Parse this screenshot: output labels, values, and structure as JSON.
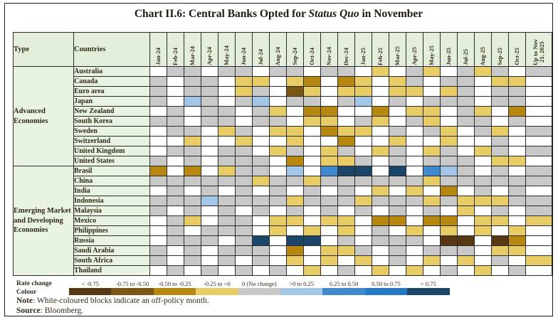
{
  "title": {
    "prefix": "Chart II.6: Central Banks Opted for ",
    "italic": "Status Quo",
    "suffix": " in November"
  },
  "header": {
    "type": "Type",
    "countries": "Countries"
  },
  "legend": {
    "title_line1": "Rate change",
    "title_line2": "Colour"
  },
  "note": {
    "label": "Note",
    "text": ": White-coloured blocks indicate an off-policy month."
  },
  "source": {
    "label": "Source",
    "text": ": Bloomberg."
  },
  "chart_data": {
    "type": "heatmap",
    "columns": [
      "Jan-24",
      "Feb-24",
      "Mar-24",
      "Apr-24",
      "May-24",
      "Jun-24",
      "Jul-24",
      "Aug-24",
      "Sep-24",
      "Oct-24",
      "Nov-24",
      "Dec-24",
      "Jan-25",
      "Feb-25",
      "Mar-25",
      "Apr-25",
      "May-25",
      "Jun-25",
      "Jul-25",
      "Aug-25",
      "Sep-25",
      "Oct-25",
      "Up to Nov\n21, 2025"
    ],
    "cell_codes": {
      "W": {
        "meaning": "off-policy month",
        "color": "#ffffff"
      },
      "G": {
        "meaning": "0 (No change)",
        "color": "#c9c9c9"
      },
      "Y": {
        "meaning": "-0.25 to <0",
        "color": "#e8cc66"
      },
      "DG": {
        "meaning": "-0.50 to -0.25",
        "color": "#b8870f"
      },
      "BR": {
        "meaning": "-0.75 to -0.50",
        "color": "#7a5714"
      },
      "DBR": {
        "meaning": "< -0.75",
        "color": "#573812"
      },
      "LB": {
        "meaning": ">0 to 0.25",
        "color": "#a3c7e8"
      },
      "MB": {
        "meaning": "0.25 to 0.50",
        "color": "#4189ce"
      },
      "DB8": {
        "meaning": "0.50 to 0.75",
        "color": "#2878c8"
      },
      "NV": {
        "meaning": "> 0.75",
        "color": "#1b4669"
      }
    },
    "legend_bins": [
      {
        "label": "< -0.75",
        "color": "#573812"
      },
      {
        "label": "-0.75 to -0.50",
        "color": "#7a5714"
      },
      {
        "label": "-0.50 to -0.25",
        "color": "#b8870f"
      },
      {
        "label": "-0.25 to <0",
        "color": "#e8cc66"
      },
      {
        "label": "0 (No change)",
        "color": "#c9c9c9"
      },
      {
        "label": ">0 to 0.25",
        "color": "#a3c7e8"
      },
      {
        "label": "0.25 to 0.50",
        "color": "#4189ce"
      },
      {
        "label": "0.50 to 0.75",
        "color": "#2878c8"
      },
      {
        "label": "> 0.75",
        "color": "#1b4669"
      }
    ],
    "groups": [
      {
        "label": "Advanced Economies",
        "rows": [
          {
            "country": "Australia",
            "cells": [
              "W",
              "G",
              "G",
              "W",
              "G",
              "G",
              "W",
              "G",
              "G",
              "W",
              "G",
              "G",
              "W",
              "Y",
              "W",
              "G",
              "Y",
              "W",
              "G",
              "Y",
              "G",
              "W",
              "G"
            ]
          },
          {
            "country": "Canada",
            "cells": [
              "G",
              "W",
              "G",
              "G",
              "W",
              "Y",
              "Y",
              "W",
              "Y",
              "DG",
              "W",
              "DG",
              "Y",
              "W",
              "Y",
              "G",
              "W",
              "G",
              "G",
              "W",
              "Y",
              "Y",
              "W"
            ]
          },
          {
            "country": "Euro area",
            "cells": [
              "G",
              "W",
              "G",
              "G",
              "W",
              "Y",
              "G",
              "W",
              "BR",
              "Y",
              "W",
              "Y",
              "Y",
              "W",
              "Y",
              "Y",
              "W",
              "Y",
              "G",
              "W",
              "G",
              "G",
              "W"
            ]
          },
          {
            "country": "Japan",
            "cells": [
              "G",
              "W",
              "LB",
              "G",
              "W",
              "G",
              "LB",
              "W",
              "G",
              "G",
              "W",
              "G",
              "LB",
              "W",
              "G",
              "W",
              "G",
              "G",
              "G",
              "W",
              "G",
              "G",
              "W"
            ]
          },
          {
            "country": "New Zealand",
            "cells": [
              "W",
              "G",
              "W",
              "G",
              "G",
              "W",
              "G",
              "Y",
              "W",
              "DG",
              "DG",
              "W",
              "W",
              "DG",
              "W",
              "Y",
              "Y",
              "W",
              "G",
              "Y",
              "W",
              "DG",
              "W"
            ]
          },
          {
            "country": "South Korea",
            "cells": [
              "G",
              "G",
              "W",
              "G",
              "G",
              "W",
              "G",
              "G",
              "W",
              "Y",
              "Y",
              "W",
              "G",
              "Y",
              "W",
              "G",
              "Y",
              "W",
              "G",
              "G",
              "W",
              "G",
              "W"
            ]
          },
          {
            "country": "Sweden",
            "cells": [
              "W",
              "G",
              "G",
              "W",
              "Y",
              "G",
              "W",
              "Y",
              "Y",
              "W",
              "DG",
              "Y",
              "Y",
              "W",
              "G",
              "W",
              "G",
              "Y",
              "W",
              "G",
              "Y",
              "W",
              "G"
            ]
          },
          {
            "country": "Switzerland",
            "cells": [
              "W",
              "W",
              "Y",
              "W",
              "W",
              "Y",
              "W",
              "W",
              "Y",
              "W",
              "W",
              "DG",
              "W",
              "W",
              "Y",
              "W",
              "W",
              "Y",
              "W",
              "W",
              "G",
              "W",
              "W"
            ]
          },
          {
            "country": "United Kingdom",
            "cells": [
              "W",
              "G",
              "G",
              "W",
              "G",
              "G",
              "W",
              "Y",
              "G",
              "W",
              "Y",
              "G",
              "W",
              "Y",
              "G",
              "W",
              "Y",
              "G",
              "W",
              "Y",
              "G",
              "W",
              "G"
            ]
          },
          {
            "country": "United States",
            "cells": [
              "G",
              "W",
              "G",
              "W",
              "G",
              "G",
              "G",
              "W",
              "DG",
              "W",
              "Y",
              "Y",
              "G",
              "W",
              "G",
              "W",
              "G",
              "G",
              "G",
              "W",
              "Y",
              "Y",
              "W"
            ]
          }
        ]
      },
      {
        "label": "Emerging Market and Developing Economies",
        "rows": [
          {
            "country": "Brasil",
            "cells": [
              "DG",
              "W",
              "DG",
              "W",
              "Y",
              "G",
              "G",
              "W",
              "LB",
              "W",
              "MB",
              "NV",
              "NV",
              "W",
              "NV",
              "W",
              "MB",
              "LB",
              "G",
              "W",
              "G",
              "W",
              "G"
            ]
          },
          {
            "country": "China",
            "cells": [
              "G",
              "G",
              "G",
              "G",
              "G",
              "G",
              "Y",
              "G",
              "G",
              "Y",
              "G",
              "G",
              "G",
              "G",
              "G",
              "G",
              "Y",
              "G",
              "G",
              "G",
              "G",
              "G",
              "G"
            ]
          },
          {
            "country": "India",
            "cells": [
              "W",
              "G",
              "W",
              "G",
              "W",
              "G",
              "W",
              "G",
              "W",
              "G",
              "W",
              "G",
              "W",
              "Y",
              "W",
              "Y",
              "W",
              "DG",
              "W",
              "G",
              "W",
              "G",
              "W"
            ]
          },
          {
            "country": "Indonesia",
            "cells": [
              "G",
              "G",
              "G",
              "LB",
              "G",
              "G",
              "G",
              "G",
              "Y",
              "G",
              "G",
              "G",
              "Y",
              "G",
              "G",
              "G",
              "Y",
              "G",
              "Y",
              "Y",
              "Y",
              "G",
              "G"
            ]
          },
          {
            "country": "Malaysia",
            "cells": [
              "G",
              "W",
              "G",
              "W",
              "G",
              "W",
              "G",
              "W",
              "G",
              "W",
              "G",
              "W",
              "G",
              "W",
              "G",
              "W",
              "G",
              "W",
              "Y",
              "W",
              "G",
              "W",
              "G"
            ]
          },
          {
            "country": "Mexico",
            "cells": [
              "W",
              "G",
              "Y",
              "W",
              "G",
              "G",
              "W",
              "Y",
              "Y",
              "W",
              "Y",
              "Y",
              "W",
              "DG",
              "DG",
              "W",
              "DG",
              "DG",
              "W",
              "Y",
              "Y",
              "W",
              "Y"
            ]
          },
          {
            "country": "Philippines",
            "cells": [
              "W",
              "G",
              "W",
              "G",
              "G",
              "G",
              "W",
              "Y",
              "W",
              "Y",
              "W",
              "Y",
              "W",
              "G",
              "W",
              "Y",
              "W",
              "Y",
              "W",
              "Y",
              "W",
              "Y",
              "W"
            ]
          },
          {
            "country": "Russia",
            "cells": [
              "W",
              "G",
              "G",
              "G",
              "W",
              "G",
              "NV",
              "W",
              "NV",
              "NV",
              "W",
              "G",
              "W",
              "G",
              "G",
              "G",
              "W",
              "DBR",
              "DBR",
              "W",
              "DBR",
              "DG",
              "W"
            ]
          },
          {
            "country": "Saudi Arabia",
            "cells": [
              "G",
              "W",
              "G",
              "W",
              "G",
              "G",
              "G",
              "W",
              "DG",
              "W",
              "Y",
              "Y",
              "G",
              "W",
              "G",
              "W",
              "G",
              "G",
              "G",
              "W",
              "Y",
              "Y",
              "W"
            ]
          },
          {
            "country": "South Africa",
            "cells": [
              "G",
              "W",
              "G",
              "W",
              "G",
              "W",
              "G",
              "W",
              "Y",
              "W",
              "Y",
              "W",
              "Y",
              "W",
              "G",
              "W",
              "Y",
              "W",
              "Y",
              "W",
              "G",
              "W",
              "Y"
            ]
          },
          {
            "country": "Thailand",
            "cells": [
              "W",
              "G",
              "W",
              "G",
              "W",
              "G",
              "W",
              "G",
              "W",
              "Y",
              "W",
              "G",
              "W",
              "Y",
              "W",
              "Y",
              "W",
              "G",
              "W",
              "Y",
              "W",
              "G",
              "W"
            ]
          }
        ]
      }
    ]
  }
}
